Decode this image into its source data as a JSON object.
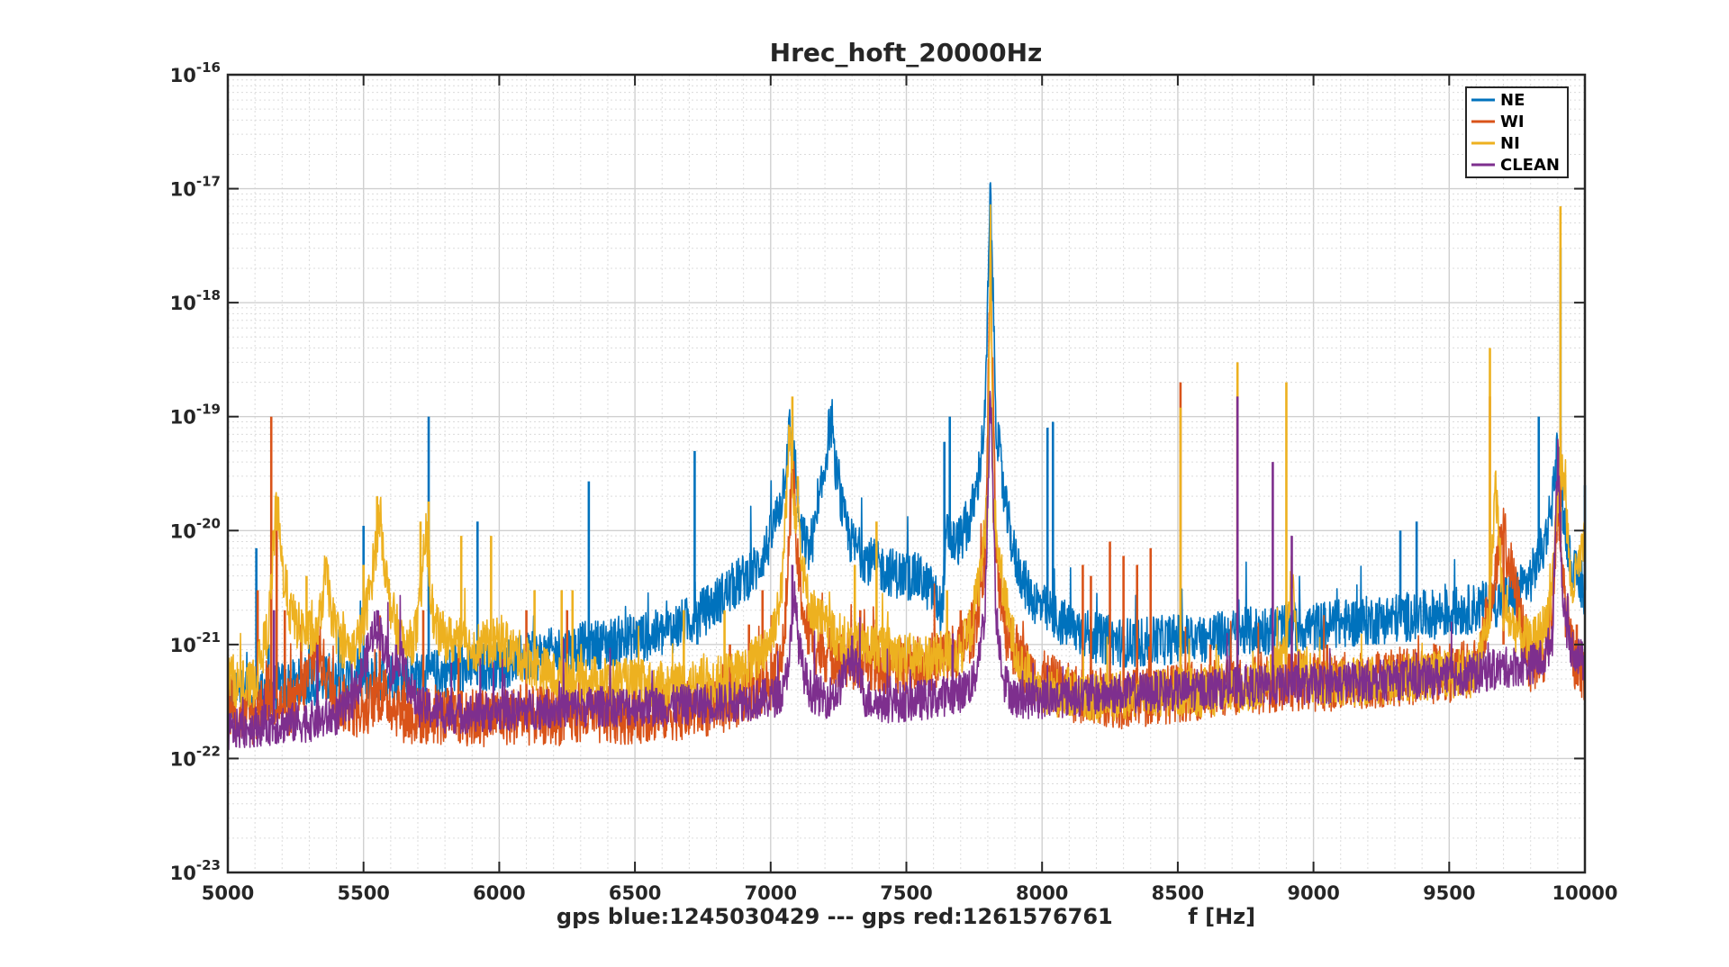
{
  "chart_data": {
    "type": "line",
    "title": "Hrec_hoft_20000Hz",
    "xlabel": "gps blue:1245030429 --- gps red:1261576761          f [Hz]",
    "ylabel": "",
    "xlim": [
      5000,
      10000
    ],
    "ylim": [
      1e-23,
      1e-16
    ],
    "yscale": "log",
    "grid": "major and minor",
    "legend_position": "top-right",
    "x_ticks": [
      {
        "value": 5000,
        "label": "5000"
      },
      {
        "value": 5500,
        "label": "5500"
      },
      {
        "value": 6000,
        "label": "6000"
      },
      {
        "value": 6500,
        "label": "6500"
      },
      {
        "value": 7000,
        "label": "7000"
      },
      {
        "value": 7500,
        "label": "7500"
      },
      {
        "value": 8000,
        "label": "8000"
      },
      {
        "value": 8500,
        "label": "8500"
      },
      {
        "value": 9000,
        "label": "9000"
      },
      {
        "value": 9500,
        "label": "9500"
      },
      {
        "value": 10000,
        "label": "10000"
      }
    ],
    "y_ticks": [
      {
        "exp": -16,
        "base": "10",
        "sup": "-16"
      },
      {
        "exp": -17,
        "base": "10",
        "sup": "-17"
      },
      {
        "exp": -18,
        "base": "10",
        "sup": "-18"
      },
      {
        "exp": -19,
        "base": "10",
        "sup": "-19"
      },
      {
        "exp": -20,
        "base": "10",
        "sup": "-20"
      },
      {
        "exp": -21,
        "base": "10",
        "sup": "-21"
      },
      {
        "exp": -22,
        "base": "10",
        "sup": "-22"
      },
      {
        "exp": -23,
        "base": "10",
        "sup": "-23"
      }
    ],
    "series": [
      {
        "name": "NE",
        "color": "#0072BD",
        "noise": 0.22,
        "x": [
          5000,
          5100,
          5200,
          5300,
          5400,
          5500,
          5600,
          5700,
          5800,
          5900,
          6000,
          6100,
          6200,
          6300,
          6400,
          6500,
          6600,
          6650,
          6700,
          6750,
          6800,
          6850,
          6900,
          6950,
          7000,
          7040,
          7070,
          7090,
          7110,
          7140,
          7170,
          7200,
          7220,
          7240,
          7270,
          7300,
          7350,
          7400,
          7450,
          7500,
          7550,
          7600,
          7630,
          7650,
          7680,
          7700,
          7730,
          7760,
          7790,
          7810,
          7830,
          7860,
          7900,
          7950,
          8000,
          8050,
          8100,
          8200,
          8300,
          8400,
          8500,
          8600,
          8700,
          8800,
          8900,
          9000,
          9100,
          9200,
          9300,
          9400,
          9500,
          9600,
          9700,
          9750,
          9800,
          9850,
          9880,
          9900,
          9920,
          9950,
          10000
        ],
        "y": [
          3.5e-22,
          4e-22,
          4.5e-22,
          5e-22,
          5.2e-22,
          5.5e-22,
          5.6e-22,
          5.5e-22,
          6e-22,
          6.5e-22,
          7e-22,
          8e-22,
          9e-22,
          1e-21,
          1.1e-21,
          1.2e-21,
          1.3e-21,
          1.5e-21,
          1.7e-21,
          2e-21,
          2.5e-21,
          3.2e-21,
          4e-21,
          5e-21,
          9e-21,
          2e-20,
          8e-20,
          4e-20,
          1e-20,
          7e-21,
          1.2e-20,
          4e-20,
          1e-19,
          3.5e-20,
          1.3e-20,
          8e-21,
          6e-21,
          5e-21,
          4.5e-21,
          4.2e-21,
          4e-21,
          3e-21,
          2e-21,
          1e-20,
          8e-21,
          9e-21,
          1.2e-20,
          2.5e-20,
          1e-19,
          1.1e-17,
          1e-19,
          2e-20,
          6e-21,
          3e-21,
          2.2e-21,
          1.8e-21,
          1.5e-21,
          1.2e-21,
          1.1e-21,
          1.1e-21,
          1.2e-21,
          1.2e-21,
          1.3e-21,
          1.4e-21,
          1.5e-21,
          1.5e-21,
          1.6e-21,
          1.7e-21,
          1.8e-21,
          1.9e-21,
          2e-21,
          2.2e-21,
          2.6e-21,
          3e-21,
          4e-21,
          8e-21,
          2e-20,
          6e-20,
          1.5e-20,
          5e-21,
          3e-21
        ],
        "peaks": [
          [
            5105,
            7e-21
          ],
          [
            5150,
            1e-21
          ],
          [
            5300,
            1e-21
          ],
          [
            5500,
            1.1e-20
          ],
          [
            5740,
            1e-19
          ],
          [
            5920,
            1.2e-20
          ],
          [
            6330,
            2.7e-20
          ],
          [
            6720,
            5e-20
          ],
          [
            6730,
            1e-21
          ],
          [
            7080,
            1e-19
          ],
          [
            7640,
            6e-20
          ],
          [
            7660,
            1e-19
          ],
          [
            7810,
            1.1e-17
          ],
          [
            8020,
            8e-20
          ],
          [
            8040,
            9e-20
          ],
          [
            9320,
            1e-20
          ],
          [
            9380,
            1.2e-20
          ],
          [
            9830,
            1e-19
          ],
          [
            9910,
            3e-18
          ],
          [
            9920,
            1e-20
          ],
          [
            10000,
            2.5e-20
          ]
        ]
      },
      {
        "name": "WI",
        "color": "#D95319",
        "noise": 0.26,
        "x": [
          5000,
          5100,
          5150,
          5200,
          5250,
          5300,
          5330,
          5360,
          5400,
          5450,
          5500,
          5530,
          5560,
          5590,
          5620,
          5660,
          5700,
          5800,
          5900,
          6000,
          6200,
          6400,
          6600,
          6800,
          7000,
          7050,
          7080,
          7100,
          7130,
          7170,
          7200,
          7250,
          7300,
          7400,
          7500,
          7600,
          7700,
          7750,
          7790,
          7810,
          7830,
          7870,
          7950,
          8100,
          8300,
          8500,
          8700,
          8900,
          9100,
          9300,
          9500,
          9600,
          9700,
          9800,
          9850,
          9880,
          9900,
          9930,
          9960,
          10000
        ],
        "y": [
          2.5e-22,
          2.5e-22,
          4e-22,
          3e-22,
          3e-22,
          6e-22,
          1e-21,
          6e-22,
          3.5e-22,
          3e-22,
          2.8e-22,
          3.5e-22,
          4e-22,
          3.5e-22,
          3e-22,
          2.5e-22,
          2.5e-22,
          2.5e-22,
          2.4e-22,
          2.5e-22,
          2.5e-22,
          2.5e-22,
          2.7e-22,
          3e-22,
          5e-22,
          1e-21,
          4e-20,
          5e-21,
          1.5e-21,
          1e-21,
          9e-22,
          8e-22,
          7.5e-22,
          7e-22,
          7e-22,
          7.5e-22,
          1e-21,
          1.5e-21,
          6e-21,
          3e-18,
          6e-21,
          1.3e-21,
          6e-22,
          4e-22,
          3.5e-22,
          4e-22,
          4.5e-22,
          5e-22,
          5e-22,
          5.5e-22,
          6e-22,
          6.5e-22,
          1e-20,
          7e-22,
          9e-22,
          2e-21,
          1.5e-20,
          2e-21,
          8e-22,
          6e-22
        ],
        "peaks": [
          [
            5110,
            3e-21
          ],
          [
            5160,
            1e-19
          ],
          [
            5180,
            1e-20
          ],
          [
            5210,
            2e-21
          ],
          [
            5270,
            1.5e-21
          ],
          [
            5350,
            8e-22
          ],
          [
            5560,
            1.8e-21
          ],
          [
            5650,
            6e-22
          ],
          [
            5720,
            2e-21
          ],
          [
            5850,
            1e-21
          ],
          [
            6100,
            2e-21
          ],
          [
            6250,
            2e-21
          ],
          [
            6850,
            1e-21
          ],
          [
            6920,
            1.5e-21
          ],
          [
            6970,
            3e-21
          ],
          [
            7330,
            2e-21
          ],
          [
            7700,
            2e-21
          ],
          [
            8150,
            5e-21
          ],
          [
            8180,
            4e-21
          ],
          [
            8250,
            8e-21
          ],
          [
            8300,
            6e-21
          ],
          [
            8350,
            5e-21
          ],
          [
            8400,
            7e-21
          ],
          [
            8510,
            2e-19
          ],
          [
            8620,
            1e-21
          ],
          [
            8720,
            1.5e-19
          ],
          [
            9050,
            1e-21
          ],
          [
            9450,
            1e-21
          ],
          [
            9650,
            1.5e-19
          ],
          [
            9700,
            1e-21
          ],
          [
            9830,
            8e-22
          ],
          [
            9910,
            8e-20
          ],
          [
            9970,
            1.5e-21
          ]
        ]
      },
      {
        "name": "NI",
        "color": "#EDB120",
        "noise": 0.22,
        "x": [
          5000,
          5060,
          5100,
          5150,
          5180,
          5200,
          5230,
          5260,
          5300,
          5330,
          5360,
          5390,
          5420,
          5460,
          5500,
          5530,
          5560,
          5590,
          5620,
          5660,
          5700,
          5730,
          5760,
          5800,
          5900,
          6000,
          6200,
          6400,
          6600,
          6800,
          6900,
          6950,
          7000,
          7040,
          7070,
          7090,
          7100,
          7110,
          7130,
          7160,
          7200,
          7300,
          7400,
          7500,
          7600,
          7700,
          7740,
          7780,
          7800,
          7810,
          7820,
          7840,
          7880,
          7920,
          7960,
          8000,
          8100,
          8200,
          8400,
          8600,
          8800,
          8900,
          8920,
          8940,
          9000,
          9200,
          9400,
          9600,
          9650,
          9670,
          9700,
          9800,
          9850,
          9880,
          9900,
          9920,
          9950,
          10000
        ],
        "y": [
          6e-22,
          4e-22,
          5e-22,
          1.5e-21,
          2e-20,
          5e-21,
          2e-21,
          1.5e-21,
          1.3e-21,
          1.2e-21,
          4.5e-21,
          1.6e-21,
          1.1e-21,
          9e-22,
          1.5e-21,
          4e-21,
          1.5e-20,
          3e-21,
          1.5e-21,
          9e-22,
          1.5e-21,
          1e-20,
          1.5e-21,
          1.2e-21,
          1e-21,
          1.1e-21,
          5.5e-22,
          5e-22,
          4.5e-22,
          5e-22,
          6e-22,
          8e-22,
          1.2e-21,
          3e-21,
          8e-20,
          1.5e-20,
          2e-20,
          8e-21,
          3e-21,
          2e-21,
          1.5e-21,
          1e-21,
          1e-21,
          8e-22,
          8e-22,
          9e-22,
          1.5e-21,
          6e-21,
          2e-20,
          5e-18,
          2e-20,
          6e-21,
          1.5e-21,
          7e-22,
          5e-22,
          4e-22,
          4e-22,
          3.5e-22,
          4e-22,
          4e-22,
          4.5e-22,
          8e-22,
          5e-21,
          8e-22,
          5e-22,
          5e-22,
          5.5e-22,
          6e-22,
          2e-21,
          3e-20,
          2e-21,
          1e-21,
          1.5e-21,
          3e-21,
          2e-20,
          4e-20,
          3e-21,
          8e-21
        ],
        "peaks": [
          [
            5180,
            1e-20
          ],
          [
            5290,
            4e-21
          ],
          [
            5500,
            5e-21
          ],
          [
            5550,
            2e-20
          ],
          [
            5710,
            1.2e-20
          ],
          [
            5740,
            1.8e-20
          ],
          [
            5860,
            9e-21
          ],
          [
            5970,
            9e-21
          ],
          [
            6130,
            3e-21
          ],
          [
            6230,
            3e-21
          ],
          [
            6270,
            3e-21
          ],
          [
            6680,
            2e-21
          ],
          [
            6830,
            2e-21
          ],
          [
            7080,
            1.5e-19
          ],
          [
            7100,
            3e-20
          ],
          [
            7310,
            5e-21
          ],
          [
            7390,
            1.2e-20
          ],
          [
            7650,
            3e-21
          ],
          [
            8510,
            1.2e-19
          ],
          [
            8720,
            3e-19
          ],
          [
            8900,
            2e-19
          ],
          [
            9650,
            4e-19
          ],
          [
            9910,
            7e-18
          ]
        ]
      },
      {
        "name": "CLEAN",
        "color": "#7E2F8E",
        "noise": 0.18,
        "x": [
          5000,
          5100,
          5200,
          5300,
          5350,
          5400,
          5450,
          5480,
          5510,
          5540,
          5560,
          5580,
          5600,
          5620,
          5640,
          5660,
          5700,
          5800,
          5900,
          6000,
          6200,
          6400,
          6600,
          6800,
          7000,
          7050,
          7080,
          7090,
          7100,
          7120,
          7150,
          7200,
          7250,
          7270,
          7300,
          7330,
          7350,
          7400,
          7500,
          7600,
          7700,
          7750,
          7790,
          7810,
          7830,
          7860,
          7900,
          8000,
          8200,
          8400,
          8600,
          8800,
          9000,
          9200,
          9400,
          9600,
          9700,
          9800,
          9850,
          9880,
          9900,
          9920,
          9950,
          10000
        ],
        "y": [
          1.8e-22,
          2e-22,
          2.1e-22,
          2.2e-22,
          2.3e-22,
          2.5e-22,
          3e-22,
          4.5e-22,
          8e-22,
          1.5e-21,
          1.4e-21,
          9e-22,
          6e-22,
          7e-22,
          9e-22,
          5e-22,
          3e-22,
          2.6e-22,
          2.6e-22,
          2.7e-22,
          2.9e-22,
          3e-22,
          3e-22,
          3.2e-22,
          3.5e-22,
          4e-22,
          1.5e-21,
          3e-21,
          1.2e-21,
          6e-22,
          4e-22,
          3.5e-22,
          4e-22,
          6e-22,
          8e-22,
          5e-22,
          3.5e-22,
          3.2e-22,
          3.3e-22,
          3.5e-22,
          4e-22,
          5e-22,
          2e-21,
          2e-19,
          2e-21,
          5e-22,
          3.5e-22,
          3.5e-22,
          3.8e-22,
          4e-22,
          4.2e-22,
          4.5e-22,
          4.7e-22,
          5e-22,
          5.2e-22,
          5.8e-22,
          6.5e-22,
          7e-22,
          8e-22,
          1.2e-21,
          6e-20,
          2e-21,
          1e-21,
          7e-22
        ],
        "peaks": [
          [
            5170,
            2e-21
          ],
          [
            5330,
            1e-21
          ],
          [
            5550,
            2e-21
          ],
          [
            5620,
            1e-21
          ],
          [
            7080,
            5e-21
          ],
          [
            7300,
            1.2e-21
          ],
          [
            7670,
            1e-21
          ],
          [
            8720,
            1.5e-19
          ],
          [
            8850,
            4e-20
          ],
          [
            8920,
            9e-21
          ]
        ]
      }
    ]
  }
}
